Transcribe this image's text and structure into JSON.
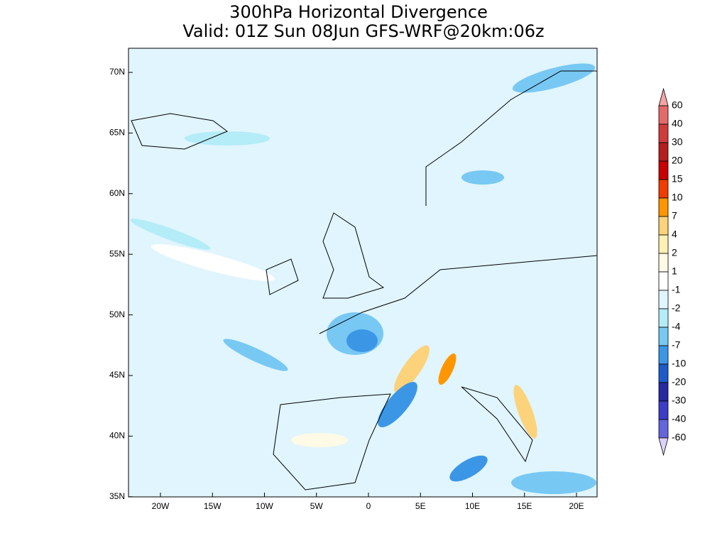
{
  "title": [
    "300hPa Horizontal Divergence",
    "Valid: 01Z Sun 08Jun GFS-WRF@20km:06z"
  ],
  "map": {
    "lat_labels": [
      "70N",
      "65N",
      "60N",
      "55N",
      "50N",
      "45N",
      "40N",
      "35N"
    ],
    "lon_labels": [
      "20W",
      "15W",
      "10W",
      "5W",
      "0",
      "5E",
      "10E",
      "15E",
      "20E"
    ]
  },
  "colorbar": {
    "labels": [
      "60",
      "40",
      "30",
      "20",
      "15",
      "10",
      "7",
      "4",
      "2",
      "1",
      "-1",
      "-2",
      "-4",
      "-7",
      "-10",
      "-20",
      "-30",
      "-40",
      "-60"
    ],
    "colors": [
      "#f4a4a4",
      "#e46a6a",
      "#d03c3c",
      "#b41e1e",
      "#c80000",
      "#f03c00",
      "#ff9600",
      "#fcd27a",
      "#fff0b4",
      "#fffae6",
      "#ffffff",
      "#e0f5fd",
      "#b4ecf8",
      "#78c8f4",
      "#3c96e6",
      "#1e5ac8",
      "#2828a0",
      "#3c3cc8",
      "#6464dc",
      "#a096f0",
      "#dcd2fa"
    ]
  }
}
